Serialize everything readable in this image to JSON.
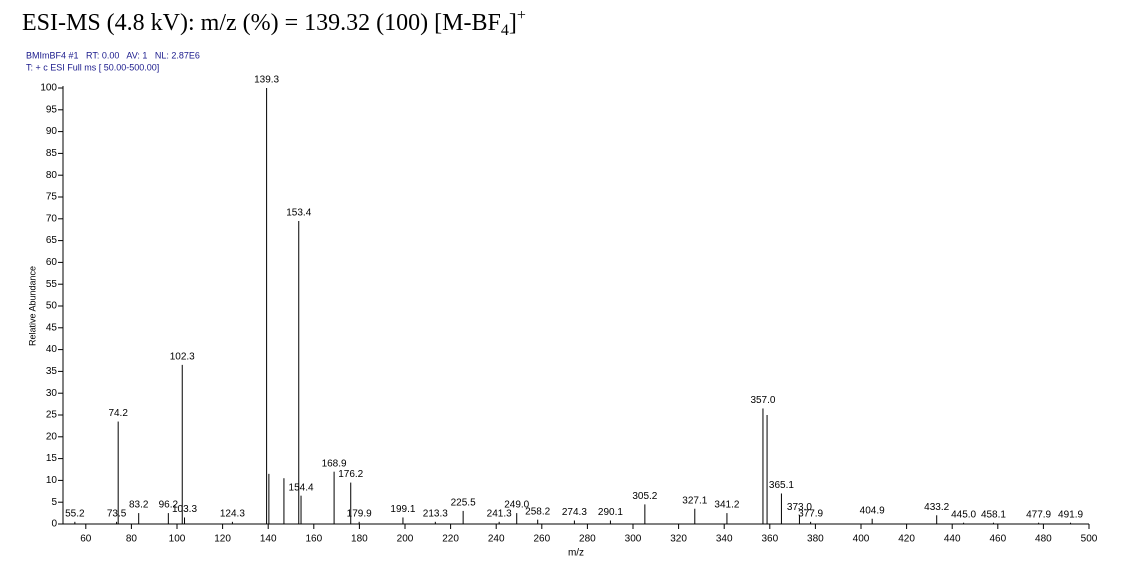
{
  "title": {
    "main": "ESI-MS (4.8 kV): m/z (%) = 139.32 (100) [M-BF",
    "subscript": "4",
    "close": "]",
    "superscript": "+"
  },
  "header": [
    "BMImBF4 #1   RT: 0.00   AV: 1   NL: 2.87E6",
    "T: + c ESI Full ms [ 50.00-500.00]"
  ],
  "chart_data": {
    "type": "stem",
    "color": "#000000",
    "x_label": "m/z",
    "y_label": "Relative Abundance",
    "x": [
      55.2,
      73.5,
      74.2,
      83.2,
      96.2,
      102.3,
      103.3,
      124.3,
      139.3,
      140.3,
      146.9,
      153.4,
      154.4,
      168.9,
      176.2,
      179.9,
      199.1,
      213.3,
      225.5,
      241.3,
      249.0,
      258.2,
      274.3,
      290.1,
      305.2,
      327.1,
      341.2,
      357.0,
      358.8,
      365.1,
      373.0,
      377.9,
      404.9,
      433.2,
      445.0,
      458.1,
      477.9,
      491.9
    ],
    "values": [
      0.5,
      0.5,
      23.5,
      2.5,
      2.5,
      36.5,
      1.5,
      0.5,
      100,
      11.5,
      10.5,
      69.5,
      6.5,
      12,
      9.5,
      0.5,
      1.5,
      0.5,
      3,
      0.5,
      2.5,
      1,
      0.8,
      0.8,
      4.5,
      3.5,
      2.5,
      26.5,
      25,
      7,
      2,
      0.5,
      1.2,
      2,
      0.3,
      0.3,
      0.3,
      0.3
    ],
    "x_labels": [
      "55.2",
      "73.5",
      "74.2",
      "83.2",
      "96.2",
      "102.3",
      "103.3",
      "124.3",
      "139.3",
      null,
      null,
      "153.4",
      "154.4",
      "168.9",
      "176.2",
      "179.9",
      "199.1",
      "213.3",
      "225.5",
      "241.3",
      "249.0",
      "258.2",
      "274.3",
      "290.1",
      "305.2",
      "327.1",
      "341.2",
      "357.0",
      null,
      "365.1",
      "373.0",
      "377.9",
      "404.9",
      "433.2",
      "445.0",
      "458.1",
      "477.9",
      "491.9"
    ],
    "xlim": [
      50,
      500
    ],
    "ylim": [
      0,
      100
    ],
    "xticks": [
      60,
      80,
      100,
      120,
      140,
      160,
      180,
      200,
      220,
      240,
      260,
      280,
      300,
      320,
      340,
      360,
      380,
      400,
      420,
      440,
      460,
      480,
      500
    ],
    "yticks": [
      0,
      5,
      10,
      15,
      20,
      25,
      30,
      35,
      40,
      45,
      50,
      55,
      60,
      65,
      70,
      75,
      80,
      85,
      90,
      95,
      100
    ]
  }
}
